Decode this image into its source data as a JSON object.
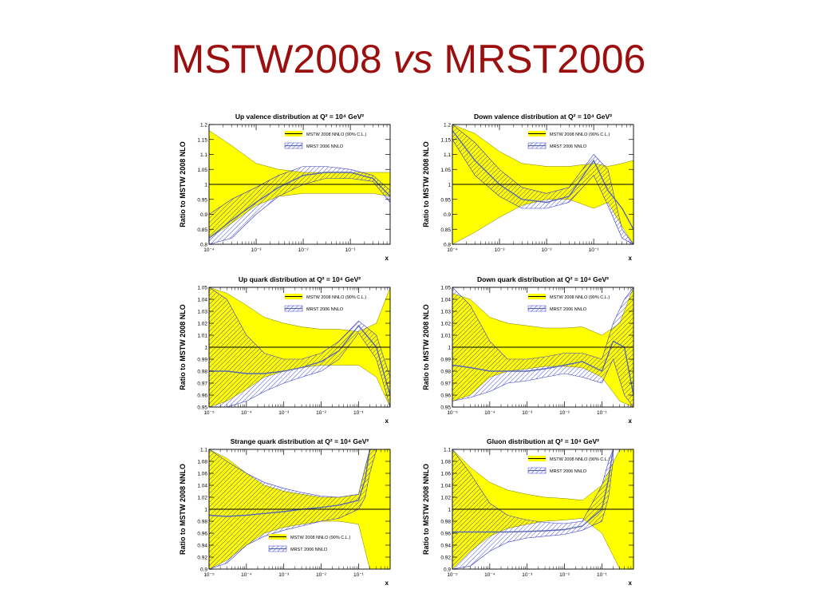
{
  "slide": {
    "title_part1": "MSTW2008 ",
    "title_vs": "vs",
    "title_part2": " MRST2006"
  },
  "colors": {
    "title": "#9b0f0f",
    "mstw_band": "#ffff00",
    "mrst_hatch": "#3a3ad0",
    "reference_line": "#000000"
  },
  "legend_labels": {
    "mstw": "MSTW 2008 NNLO (90% C.L.)",
    "mrst": "MRST 2006 NNLO"
  },
  "chart_data": [
    {
      "type": "line",
      "title": "Up valence distribution at Q² = 10⁴ GeV²",
      "xlabel": "x",
      "ylabel": "Ratio to MSTW 2008 NLO",
      "xscale": "log",
      "xlim": [
        0.0001,
        0.7
      ],
      "ylim": [
        0.8,
        1.2
      ],
      "x_ticks": [
        0.0001,
        0.001,
        0.01,
        0.1
      ],
      "x_tick_labels": [
        "10⁻⁴",
        "10⁻³",
        "10⁻²",
        "10⁻¹"
      ],
      "y_ticks": [
        0.8,
        0.85,
        0.9,
        0.95,
        1.0,
        1.05,
        1.1,
        1.15,
        1.2
      ],
      "y_tick_labels": [
        "0.8",
        "0.85",
        "0.9",
        "0.95",
        "1",
        "1.05",
        "1.1",
        "1.15",
        "1.2"
      ],
      "legend_position": "top-center",
      "grid": false,
      "series": [
        {
          "name": "MSTW 2008 NNLO (90% C.L.)",
          "style": "band",
          "x": [
            0.0001,
            0.0003,
            0.001,
            0.003,
            0.01,
            0.03,
            0.1,
            0.3,
            0.7
          ],
          "upper": [
            1.18,
            1.13,
            1.07,
            1.05,
            1.04,
            1.04,
            1.04,
            1.04,
            1.04
          ],
          "lower": [
            0.82,
            0.87,
            0.93,
            0.96,
            0.97,
            0.97,
            0.97,
            0.97,
            0.96
          ]
        },
        {
          "name": "MRST 2006 NNLO",
          "style": "hatched",
          "x": [
            0.0001,
            0.0003,
            0.001,
            0.003,
            0.01,
            0.03,
            0.1,
            0.3,
            0.7
          ],
          "upper": [
            0.9,
            0.95,
            0.99,
            1.03,
            1.06,
            1.06,
            1.05,
            1.03,
            0.98
          ],
          "central": [
            0.82,
            0.88,
            0.94,
            0.99,
            1.03,
            1.04,
            1.04,
            1.02,
            0.96
          ],
          "lower": [
            0.8,
            0.82,
            0.9,
            0.96,
            1.0,
            1.02,
            1.02,
            1.01,
            0.94
          ]
        }
      ]
    },
    {
      "type": "line",
      "title": "Down valence distribution at Q² = 10⁴ GeV²",
      "xlabel": "x",
      "ylabel": "Ratio to MSTW 2008 NLO",
      "xscale": "log",
      "xlim": [
        0.0001,
        0.7
      ],
      "ylim": [
        0.8,
        1.2
      ],
      "x_ticks": [
        0.0001,
        0.001,
        0.01,
        0.1
      ],
      "x_tick_labels": [
        "10⁻⁴",
        "10⁻³",
        "10⁻²",
        "10⁻¹"
      ],
      "y_ticks": [
        0.8,
        0.85,
        0.9,
        0.95,
        1.0,
        1.05,
        1.1,
        1.15,
        1.2
      ],
      "y_tick_labels": [
        "0.8",
        "0.85",
        "0.9",
        "0.95",
        "1",
        "1.05",
        "1.1",
        "1.15",
        "1.2"
      ],
      "legend_position": "top-right",
      "grid": false,
      "series": [
        {
          "name": "MSTW 2008 NNLO (90% C.L.)",
          "style": "band",
          "x": [
            0.0001,
            0.0003,
            0.001,
            0.003,
            0.01,
            0.03,
            0.1,
            0.2,
            0.4,
            0.7
          ],
          "upper": [
            1.2,
            1.17,
            1.11,
            1.07,
            1.06,
            1.06,
            1.07,
            1.06,
            1.07,
            1.08
          ],
          "lower": [
            0.8,
            0.84,
            0.89,
            0.93,
            0.95,
            0.95,
            0.92,
            0.94,
            0.86,
            0.8
          ]
        },
        {
          "name": "MRST 2006 NNLO",
          "style": "hatched",
          "x": [
            0.0001,
            0.0003,
            0.001,
            0.003,
            0.01,
            0.03,
            0.1,
            0.2,
            0.4,
            0.7
          ],
          "upper": [
            1.2,
            1.14,
            1.05,
            0.99,
            0.97,
            0.99,
            1.1,
            1.05,
            0.85,
            0.8
          ],
          "central": [
            1.18,
            1.08,
            1.0,
            0.95,
            0.94,
            0.96,
            1.08,
            0.98,
            0.92,
            0.85
          ],
          "lower": [
            1.15,
            1.03,
            0.96,
            0.92,
            0.92,
            0.94,
            1.03,
            0.93,
            0.82,
            0.8
          ]
        }
      ]
    },
    {
      "type": "line",
      "title": "Up quark distribution at Q² = 10⁴ GeV²",
      "xlabel": "x",
      "ylabel": "Ratio to MSTW 2008 NLO",
      "xscale": "log",
      "xlim": [
        1e-05,
        0.7
      ],
      "ylim": [
        0.95,
        1.05
      ],
      "x_ticks": [
        1e-05,
        0.0001,
        0.001,
        0.01,
        0.1
      ],
      "x_tick_labels": [
        "10⁻⁵",
        "10⁻⁴",
        "10⁻³",
        "10⁻²",
        "10⁻¹"
      ],
      "y_ticks": [
        0.95,
        0.96,
        0.97,
        0.98,
        0.99,
        1.0,
        1.01,
        1.02,
        1.03,
        1.04,
        1.05
      ],
      "y_tick_labels": [
        "0.95",
        "0.96",
        "0.97",
        "0.98",
        "0.99",
        "1",
        "1.01",
        "1.02",
        "1.03",
        "1.04",
        "1.05"
      ],
      "legend_position": "top-center",
      "grid": false,
      "series": [
        {
          "name": "MSTW 2008 NNLO (90% C.L.)",
          "style": "band",
          "x": [
            1e-05,
            3e-05,
            0.0001,
            0.0003,
            0.001,
            0.003,
            0.01,
            0.03,
            0.1,
            0.3,
            0.7
          ],
          "upper": [
            1.05,
            1.045,
            1.035,
            1.025,
            1.02,
            1.017,
            1.015,
            1.015,
            1.013,
            1.02,
            1.05
          ],
          "lower": [
            0.95,
            0.955,
            0.965,
            0.975,
            0.98,
            0.983,
            0.985,
            0.985,
            0.985,
            0.975,
            0.95
          ]
        },
        {
          "name": "MRST 2006 NNLO",
          "style": "hatched",
          "x": [
            1e-05,
            3e-05,
            0.0001,
            0.0003,
            0.001,
            0.003,
            0.01,
            0.03,
            0.1,
            0.3,
            0.7
          ],
          "upper": [
            1.05,
            1.04,
            1.01,
            0.995,
            0.99,
            0.99,
            0.995,
            1.005,
            1.022,
            1.01,
            0.975
          ],
          "central": [
            0.98,
            0.98,
            0.978,
            0.978,
            0.98,
            0.983,
            0.988,
            0.997,
            1.018,
            1.0,
            0.96
          ],
          "lower": [
            0.95,
            0.95,
            0.955,
            0.963,
            0.97,
            0.975,
            0.98,
            0.99,
            1.012,
            0.99,
            0.95
          ]
        }
      ]
    },
    {
      "type": "line",
      "title": "Down quark distribution at Q² = 10⁴ GeV²",
      "xlabel": "x",
      "ylabel": "Ratio to MSTW 2008 NLO",
      "xscale": "log",
      "xlim": [
        1e-05,
        0.7
      ],
      "ylim": [
        0.95,
        1.05
      ],
      "x_ticks": [
        1e-05,
        0.0001,
        0.001,
        0.01,
        0.1
      ],
      "x_tick_labels": [
        "10⁻⁵",
        "10⁻⁴",
        "10⁻³",
        "10⁻²",
        "10⁻¹"
      ],
      "y_ticks": [
        0.95,
        0.96,
        0.97,
        0.98,
        0.99,
        1.0,
        1.01,
        1.02,
        1.03,
        1.04,
        1.05
      ],
      "y_tick_labels": [
        "0.95",
        "0.96",
        "0.97",
        "0.98",
        "0.99",
        "1",
        "1.01",
        "1.02",
        "1.03",
        "1.04",
        "1.05"
      ],
      "legend_position": "top-center",
      "grid": false,
      "series": [
        {
          "name": "MSTW 2008 NNLO (90% C.L.)",
          "style": "band",
          "x": [
            1e-05,
            3e-05,
            0.0001,
            0.0003,
            0.001,
            0.003,
            0.01,
            0.03,
            0.1,
            0.3,
            0.7
          ],
          "upper": [
            1.045,
            1.04,
            1.025,
            1.02,
            1.018,
            1.016,
            1.016,
            1.017,
            1.01,
            1.02,
            1.05
          ],
          "lower": [
            0.955,
            0.96,
            0.975,
            0.98,
            0.982,
            0.984,
            0.984,
            0.983,
            0.975,
            0.955,
            0.95
          ]
        },
        {
          "name": "MRST 2006 NNLO",
          "style": "hatched",
          "x": [
            1e-05,
            3e-05,
            0.0001,
            0.0003,
            0.001,
            0.003,
            0.01,
            0.03,
            0.1,
            0.2,
            0.4,
            0.7
          ],
          "upper": [
            1.05,
            1.035,
            1.005,
            0.99,
            0.99,
            0.992,
            0.995,
            0.995,
            0.99,
            1.02,
            1.04,
            1.05
          ],
          "central": [
            0.985,
            0.983,
            0.98,
            0.98,
            0.98,
            0.982,
            0.985,
            0.988,
            0.98,
            1.005,
            1.0,
            0.96
          ],
          "lower": [
            0.955,
            0.958,
            0.963,
            0.97,
            0.972,
            0.975,
            0.978,
            0.975,
            0.97,
            0.99,
            0.96,
            0.95
          ]
        }
      ]
    },
    {
      "type": "line",
      "title": "Strange quark distribution at Q² = 10⁴ GeV²",
      "xlabel": "x",
      "ylabel": "Ratio to MSTW 2008 NNLO",
      "xscale": "log",
      "xlim": [
        1e-05,
        0.7
      ],
      "ylim": [
        0.9,
        1.1
      ],
      "x_ticks": [
        1e-05,
        0.0001,
        0.001,
        0.01,
        0.1
      ],
      "x_tick_labels": [
        "10⁻⁵",
        "10⁻⁴",
        "10⁻³",
        "10⁻²",
        "10⁻¹"
      ],
      "y_ticks": [
        0.9,
        0.92,
        0.94,
        0.96,
        0.98,
        1.0,
        1.02,
        1.04,
        1.06,
        1.08,
        1.1
      ],
      "y_tick_labels": [
        "0.9",
        "0.92",
        "0.94",
        "0.96",
        "0.98",
        "1",
        "1.02",
        "1.04",
        "1.06",
        "1.08",
        "1.1"
      ],
      "legend_position": "bottom-center",
      "grid": false,
      "series": [
        {
          "name": "MSTW 2008 NNLO (90% C.L.)",
          "style": "band",
          "x": [
            1e-05,
            3e-05,
            0.0001,
            0.0003,
            0.001,
            0.003,
            0.01,
            0.03,
            0.1,
            0.2,
            0.4,
            0.7
          ],
          "upper": [
            1.1,
            1.085,
            1.06,
            1.04,
            1.03,
            1.025,
            1.02,
            1.02,
            1.025,
            1.1,
            1.1,
            1.1
          ],
          "lower": [
            0.9,
            0.915,
            0.94,
            0.96,
            0.97,
            0.975,
            0.98,
            0.98,
            0.975,
            0.9,
            0.9,
            0.9
          ]
        },
        {
          "name": "MRST 2006 NNLO",
          "style": "hatched",
          "x": [
            1e-05,
            3e-05,
            0.0001,
            0.0003,
            0.001,
            0.003,
            0.01,
            0.03,
            0.1,
            0.15,
            0.2,
            0.3
          ],
          "upper": [
            1.1,
            1.08,
            1.06,
            1.045,
            1.035,
            1.028,
            1.022,
            1.02,
            1.025,
            1.07,
            1.1,
            1.1
          ],
          "central": [
            0.99,
            0.988,
            0.99,
            0.993,
            0.996,
            1.0,
            1.003,
            1.007,
            1.015,
            1.05,
            1.1,
            1.1
          ],
          "lower": [
            0.9,
            0.91,
            0.94,
            0.955,
            0.965,
            0.972,
            0.98,
            0.985,
            1.0,
            1.02,
            1.06,
            1.1
          ]
        }
      ]
    },
    {
      "type": "line",
      "title": "Gluon distribution at Q² = 10⁴ GeV²",
      "xlabel": "x",
      "ylabel": "Ratio to MSTW 2008 NNLO",
      "xscale": "log",
      "xlim": [
        1e-05,
        0.7
      ],
      "ylim": [
        0.9,
        1.1
      ],
      "x_ticks": [
        1e-05,
        0.0001,
        0.001,
        0.01,
        0.1
      ],
      "x_tick_labels": [
        "10⁻⁵",
        "10⁻⁴",
        "10⁻³",
        "10⁻²",
        "10⁻¹"
      ],
      "y_ticks": [
        0.9,
        0.92,
        0.94,
        0.96,
        0.98,
        1.0,
        1.02,
        1.04,
        1.06,
        1.08,
        1.1
      ],
      "y_tick_labels": [
        "0.9",
        "0.92",
        "0.94",
        "0.96",
        "0.98",
        "1",
        "1.02",
        "1.04",
        "1.06",
        "1.08",
        "1.1"
      ],
      "legend_position": "top-center",
      "grid": false,
      "series": [
        {
          "name": "MSTW 2008 NNLO (90% C.L.)",
          "style": "band",
          "x": [
            1e-05,
            3e-05,
            0.0001,
            0.0003,
            0.001,
            0.003,
            0.01,
            0.03,
            0.1,
            0.3,
            0.7
          ],
          "upper": [
            1.1,
            1.07,
            1.045,
            1.032,
            1.025,
            1.02,
            1.018,
            1.015,
            1.04,
            1.1,
            1.1
          ],
          "lower": [
            0.9,
            0.93,
            0.955,
            0.968,
            0.975,
            0.98,
            0.982,
            0.985,
            0.96,
            0.9,
            0.9
          ]
        },
        {
          "name": "MRST 2006 NNLO",
          "style": "hatched",
          "x": [
            1e-05,
            3e-05,
            0.0001,
            0.0003,
            0.001,
            0.003,
            0.01,
            0.03,
            0.1,
            0.15,
            0.2
          ],
          "upper": [
            1.1,
            1.06,
            1.01,
            0.99,
            0.982,
            0.978,
            0.976,
            0.98,
            1.04,
            1.08,
            1.1
          ],
          "central": [
            0.962,
            0.962,
            0.962,
            0.962,
            0.963,
            0.964,
            0.966,
            0.972,
            1.0,
            1.05,
            1.1
          ],
          "lower": [
            0.9,
            0.905,
            0.93,
            0.945,
            0.952,
            0.955,
            0.958,
            0.965,
            0.98,
            1.02,
            1.08
          ]
        }
      ]
    }
  ]
}
